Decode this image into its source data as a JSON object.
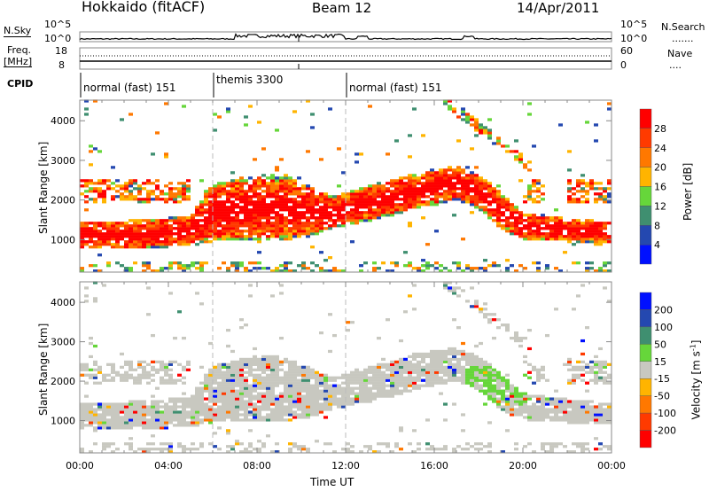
{
  "header": {
    "station": "Hokkaido (fitACF)",
    "beam": "Beam 12",
    "date": "14/Apr/2011"
  },
  "top_panels": {
    "nsky_label": "N.Sky",
    "nsky_ticks": [
      "10^5",
      "10^0"
    ],
    "nsearch_label": "N.Search",
    "nsearch_dots": ".......",
    "freq_label": "Freq.",
    "freq_unit": "[MHz]",
    "freq_ticks": [
      "18",
      "8"
    ],
    "nave_ticks": [
      "60",
      "0"
    ],
    "nave_label": "Nave",
    "nave_dots": "....",
    "cpid_label": "CPID",
    "cpid_segments": [
      {
        "label": "normal (fast) 151",
        "start_hr": 0
      },
      {
        "label": "themis 3300",
        "start_hr": 6
      },
      {
        "label": "normal (fast) 151",
        "start_hr": 12
      }
    ]
  },
  "chart_data": [
    {
      "type": "heatmap",
      "title": "Power",
      "ylabel": "Slant Range [km]",
      "xlabel": "Time UT",
      "ylim": [
        180,
        4520
      ],
      "xlim": [
        0,
        24
      ],
      "yticks": [
        "1000",
        "2000",
        "3000",
        "4000"
      ],
      "colorbar": {
        "label": "Power [dB]",
        "ticks": [
          "28",
          "24",
          "20",
          "16",
          "12",
          "8",
          "4"
        ],
        "colors": [
          "#ff0000",
          "#ff3a00",
          "#ff7800",
          "#ffb400",
          "#66d63a",
          "#3f8f70",
          "#2448b0",
          "#0010ff"
        ]
      },
      "echo_band": {
        "time_hr": [
          0,
          3,
          5,
          6,
          8,
          9.5,
          10.5,
          11.5,
          12.5,
          14,
          16,
          17,
          18,
          19,
          20,
          22,
          24
        ],
        "lower_km": [
          750,
          780,
          850,
          950,
          1000,
          1000,
          1100,
          1300,
          1400,
          1600,
          1900,
          2000,
          1800,
          1300,
          1000,
          950,
          900
        ],
        "upper_km": [
          1450,
          1500,
          1600,
          2400,
          2650,
          2600,
          2300,
          2100,
          2300,
          2500,
          2800,
          2850,
          2650,
          2200,
          1700,
          1550,
          1450
        ]
      }
    },
    {
      "type": "heatmap",
      "title": "Velocity",
      "ylabel": "Slant Range [km]",
      "xlabel": "Time UT",
      "ylim": [
        180,
        4520
      ],
      "xlim": [
        0,
        24
      ],
      "yticks": [
        "1000",
        "2000",
        "3000",
        "4000"
      ],
      "colorbar": {
        "label": "Velocity [m s^-1]",
        "ticks": [
          "200",
          "100",
          "50",
          "15",
          "-15",
          "-50",
          "-100",
          "-200"
        ],
        "colors": [
          "#0010ff",
          "#2448b0",
          "#3f8f70",
          "#66d63a",
          "#c8c8c0",
          "#ffb400",
          "#ff7800",
          "#ff3a00",
          "#ff0000"
        ]
      }
    }
  ],
  "xaxis": {
    "ticks": [
      "00:00",
      "04:00",
      "08:00",
      "12:00",
      "16:00",
      "20:00",
      "00:00"
    ],
    "label": "Time UT"
  },
  "colorbar_labels": {
    "power": "Power [dB]",
    "velocity_main": "Velocity [m s",
    "velocity_exp": "-1",
    "velocity_end": "]"
  }
}
